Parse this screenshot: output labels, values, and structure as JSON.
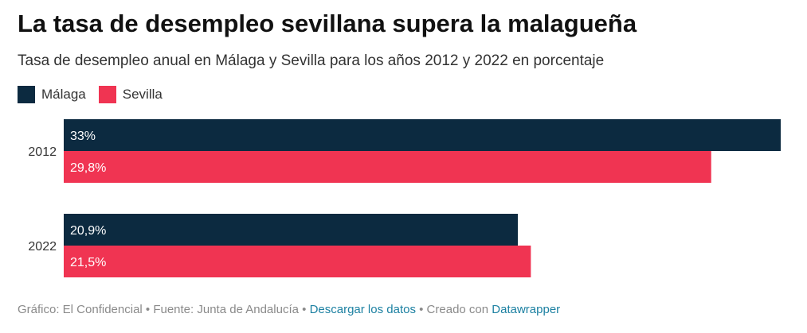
{
  "title": "La tasa de desempleo sevillana supera la malagueña",
  "subtitle": "Tasa de desempleo anual en Málaga y Sevilla para los años 2012 y 2022 en porcentaje",
  "colors": {
    "malaga": "#0c2a40",
    "sevilla": "#f03452"
  },
  "footer": {
    "source_text": "Gráfico: El Confidencial • Fuente: Junta de Andalucía • ",
    "download_link": "Descargar los datos",
    "created_text": " • Creado con ",
    "tool_link": "Datawrapper"
  },
  "chart_data": {
    "type": "bar",
    "orientation": "horizontal",
    "title": "La tasa de desempleo sevillana supera la malagueña",
    "subtitle": "Tasa de desempleo anual en Málaga y Sevilla para los años 2012 y 2022 en porcentaje",
    "xlabel": "",
    "ylabel": "",
    "categories": [
      "2012",
      "2022"
    ],
    "series": [
      {
        "name": "Málaga",
        "values": [
          33,
          20.9
        ],
        "labels": [
          "33%",
          "20,9%"
        ]
      },
      {
        "name": "Sevilla",
        "values": [
          29.8,
          21.5
        ],
        "labels": [
          "29,8%",
          "21,5%"
        ]
      }
    ],
    "xlim": [
      0,
      33
    ],
    "legend": "top-left",
    "grid": false
  }
}
